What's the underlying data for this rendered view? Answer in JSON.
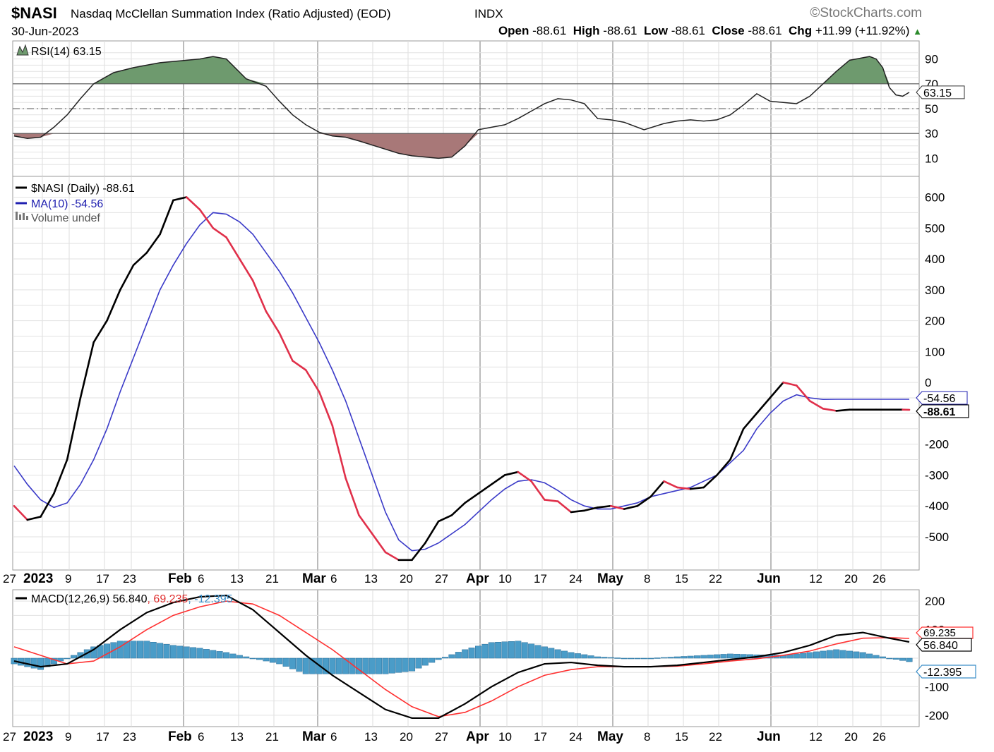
{
  "header": {
    "symbol": "$NASI",
    "name": "Nasdaq McClellan Summation Index (Ratio Adjusted) (EOD)",
    "exchange": "INDX",
    "watermark": "©StockCharts.com",
    "date": "30-Jun-2023",
    "ohlc": [
      {
        "label": "Open",
        "value": "-88.61"
      },
      {
        "label": "High",
        "value": "-88.61"
      },
      {
        "label": "Low",
        "value": "-88.61"
      },
      {
        "label": "Close",
        "value": "-88.61"
      },
      {
        "label": "Chg",
        "value": "+11.99 (+11.92%)"
      }
    ],
    "change_direction": "up"
  },
  "chart_data": [
    {
      "type": "line",
      "panel": "rsi",
      "legend": "RSI(14) 63.15",
      "current_label": "63.15",
      "y_ticks": [
        10,
        30,
        50,
        70,
        90
      ],
      "ylim": [
        0,
        100
      ],
      "levels": {
        "overbought": 70,
        "mid": 50,
        "oversold": 30
      },
      "fill_colors": {
        "above": "#6e9a6e",
        "below": "#a87878"
      },
      "x": [
        0,
        2,
        4,
        6,
        8,
        10,
        12,
        15,
        18,
        20,
        22,
        24,
        26,
        28,
        30,
        32,
        35,
        38,
        40,
        42,
        44,
        46,
        48,
        50,
        52,
        55,
        58,
        60,
        62,
        64,
        66,
        68,
        70,
        72,
        74,
        76,
        78,
        80,
        82,
        84,
        86,
        88,
        90,
        92,
        95,
        98,
        100,
        102,
        104,
        106,
        108,
        110,
        112,
        114,
        116,
        118,
        120,
        122,
        124,
        126
      ],
      "values": [
        28,
        26,
        27,
        35,
        45,
        58,
        70,
        79,
        83,
        85,
        87,
        88,
        89,
        90,
        92,
        90,
        74,
        68,
        56,
        45,
        37,
        31,
        28,
        27,
        24,
        19,
        14,
        12,
        11,
        10,
        11,
        20,
        33,
        35,
        37,
        42,
        48,
        54,
        58,
        57,
        54,
        42,
        41,
        39,
        33,
        38,
        40,
        41,
        40,
        41,
        45,
        53,
        62,
        56,
        55,
        54,
        60,
        70,
        80,
        89
      ],
      "x_extra": [
        127,
        128,
        129,
        130,
        131,
        132,
        133,
        134,
        135
      ],
      "values_extra": [
        90,
        91,
        92,
        90,
        83,
        67,
        61,
        60,
        63.15
      ]
    },
    {
      "type": "line",
      "panel": "price",
      "legend": [
        {
          "name": "$NASI (Daily) -88.61",
          "color": "#000000"
        },
        {
          "name": "MA(10) -54.56",
          "color": "#2020b0"
        },
        {
          "name": "Volume undef",
          "color": "#777777"
        }
      ],
      "y_ticks": [
        600,
        500,
        400,
        300,
        200,
        100,
        0,
        -200,
        -300,
        -400,
        -500
      ],
      "ylim": [
        -580,
        640
      ],
      "current_labels": {
        "ma": "-54.56",
        "close": "-88.61"
      },
      "x_axis_ticks": [
        "27",
        "2023",
        "9",
        "17",
        "23",
        "Feb",
        "6",
        "13",
        "21",
        "Mar",
        "6",
        "13",
        "20",
        "27",
        "Apr",
        "10",
        "17",
        "24",
        "May",
        "8",
        "15",
        "22",
        "Jun",
        "12",
        "20",
        "26"
      ],
      "colors": {
        "up": "#000000",
        "down": "#e0304a",
        "ma": "#3a3ac8"
      },
      "x": [
        0,
        2,
        4,
        6,
        8,
        10,
        12,
        14,
        16,
        18,
        20,
        22,
        24,
        26,
        28,
        30,
        32,
        34,
        36,
        38,
        40,
        42,
        44,
        46,
        48,
        50,
        52,
        54,
        56,
        58,
        60,
        62,
        64,
        66,
        68,
        70,
        72,
        74,
        76,
        78,
        80,
        82,
        84,
        86,
        88,
        90,
        92,
        94,
        96,
        98,
        100,
        102,
        104,
        106,
        108,
        110,
        112,
        114,
        116,
        118,
        120,
        122,
        124,
        126,
        128,
        130,
        132,
        134,
        135
      ],
      "values": [
        -400,
        -445,
        -435,
        -360,
        -250,
        -50,
        130,
        200,
        300,
        380,
        420,
        480,
        590,
        600,
        560,
        500,
        470,
        400,
        330,
        230,
        160,
        70,
        40,
        -30,
        -140,
        -310,
        -430,
        -490,
        -550,
        -575,
        -575,
        -520,
        -450,
        -430,
        -390,
        -360,
        -330,
        -300,
        -290,
        -320,
        -380,
        -385,
        -420,
        -415,
        -405,
        -400,
        -410,
        -400,
        -370,
        -320,
        -340,
        -345,
        -340,
        -300,
        -250,
        -150,
        -100,
        -50,
        0,
        -10,
        -60,
        -85,
        -92,
        -88,
        -88,
        -88,
        -88,
        -88,
        -88.61
      ],
      "ma": [
        -270,
        -330,
        -380,
        -405,
        -390,
        -330,
        -250,
        -150,
        -30,
        80,
        190,
        300,
        380,
        450,
        510,
        550,
        545,
        520,
        480,
        420,
        360,
        290,
        210,
        130,
        40,
        -60,
        -180,
        -300,
        -420,
        -510,
        -545,
        -540,
        -520,
        -490,
        -460,
        -420,
        -380,
        -345,
        -320,
        -315,
        -325,
        -350,
        -380,
        -400,
        -410,
        -410,
        -400,
        -390,
        -370,
        -360,
        -350,
        -340,
        -320,
        -300,
        -260,
        -220,
        -150,
        -100,
        -60,
        -40,
        -50,
        -55,
        -54.56,
        -54.56,
        -54.56,
        -54.56,
        -54.56,
        -54.56,
        -54.56
      ]
    },
    {
      "type": "line",
      "panel": "macd",
      "legend": [
        {
          "text": "MACD(12,26,9) 56.840",
          "color": "#000000"
        },
        {
          "text": ", 69.235",
          "color": "#e03030"
        },
        {
          "text": ", -12.395",
          "color": "#3a8ec8"
        }
      ],
      "y_ticks": [
        200,
        100,
        -100,
        -200
      ],
      "ylim": [
        -230,
        230
      ],
      "current_labels": {
        "signal": "69.235",
        "macd": "56.840",
        "hist": "-12.395"
      },
      "colors": {
        "macd": "#000000",
        "signal": "#ff3030",
        "hist": "#4a9cc8"
      },
      "x": [
        0,
        4,
        8,
        12,
        16,
        20,
        24,
        28,
        32,
        36,
        40,
        44,
        48,
        52,
        56,
        60,
        64,
        68,
        72,
        76,
        80,
        84,
        88,
        92,
        96,
        100,
        104,
        108,
        112,
        116,
        120,
        124,
        128,
        132,
        135
      ],
      "macd": [
        -10,
        -30,
        -20,
        30,
        100,
        160,
        195,
        215,
        220,
        170,
        90,
        10,
        -60,
        -120,
        -180,
        -210,
        -210,
        -160,
        -100,
        -50,
        -20,
        -15,
        -25,
        -30,
        -30,
        -25,
        -15,
        -5,
        5,
        20,
        45,
        80,
        90,
        70,
        56.84
      ],
      "signal": [
        40,
        10,
        -20,
        -10,
        40,
        100,
        150,
        180,
        200,
        190,
        150,
        90,
        30,
        -40,
        -110,
        -170,
        -205,
        -190,
        -150,
        -100,
        -60,
        -40,
        -30,
        -30,
        -30,
        -28,
        -20,
        -10,
        -2,
        10,
        25,
        50,
        70,
        72,
        69.235
      ],
      "hist": [
        -20,
        -40,
        0,
        40,
        60,
        60,
        45,
        35,
        20,
        0,
        -20,
        -55,
        -55,
        -55,
        -55,
        -45,
        -5,
        30,
        55,
        60,
        40,
        20,
        5,
        0,
        0,
        5,
        10,
        15,
        12,
        10,
        20,
        30,
        20,
        0,
        -12.395
      ]
    }
  ]
}
